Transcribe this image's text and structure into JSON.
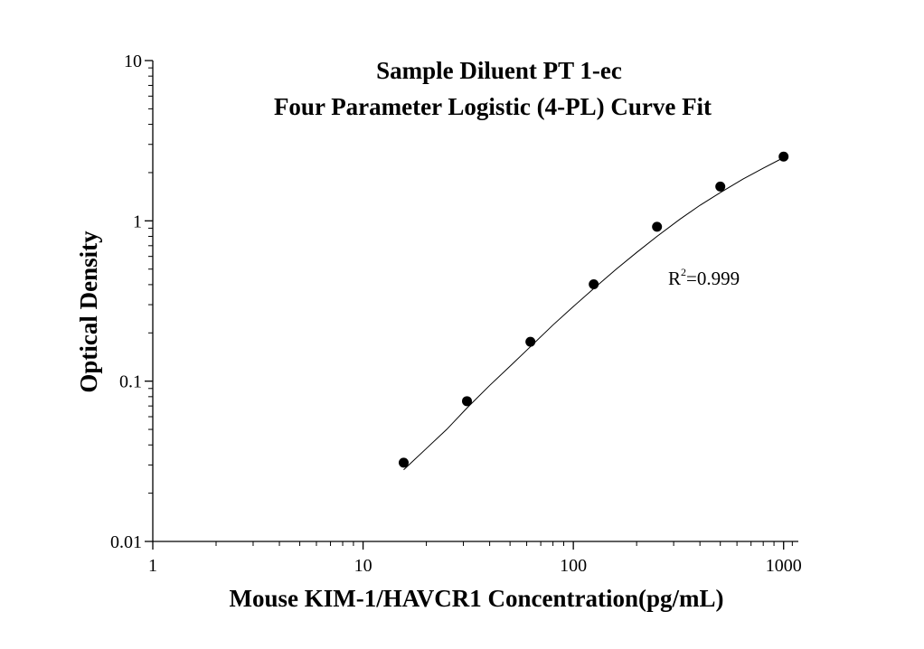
{
  "chart_data": {
    "type": "scatter",
    "title": "Sample Diluent PT 1-ec",
    "subtitle": "Four Parameter Logistic (4-PL) Curve Fit",
    "xlabel": "Mouse KIM-1/HAVCR1 Concentration(pg/mL)",
    "ylabel": "Optical Density",
    "xscale": "log",
    "yscale": "log",
    "xlim": [
      1,
      1000
    ],
    "ylim": [
      0.01,
      10
    ],
    "x_ticks": [
      "1",
      "10",
      "100",
      "1000"
    ],
    "y_ticks": [
      "0.01",
      "0.1",
      "1",
      "10"
    ],
    "grid": false,
    "series": [
      {
        "x": [
          15.6,
          31.2,
          62.5,
          125,
          250,
          500,
          1000
        ],
        "y": [
          0.031,
          0.075,
          0.176,
          0.402,
          0.918,
          1.638,
          2.516
        ]
      }
    ],
    "fit": {
      "curve_x": [
        15.6,
        20,
        25,
        31.2,
        40,
        50,
        62.5,
        80,
        100,
        125,
        160,
        200,
        250,
        320,
        400,
        500,
        640,
        800,
        1000
      ],
      "curve_y": [
        0.028,
        0.038,
        0.05,
        0.068,
        0.094,
        0.124,
        0.164,
        0.224,
        0.292,
        0.378,
        0.5,
        0.635,
        0.8,
        1.02,
        1.25,
        1.5,
        1.82,
        2.13,
        2.48
      ]
    },
    "annotation": {
      "r_base": "R",
      "r_sup": "2",
      "r_value": "=0.999"
    }
  }
}
